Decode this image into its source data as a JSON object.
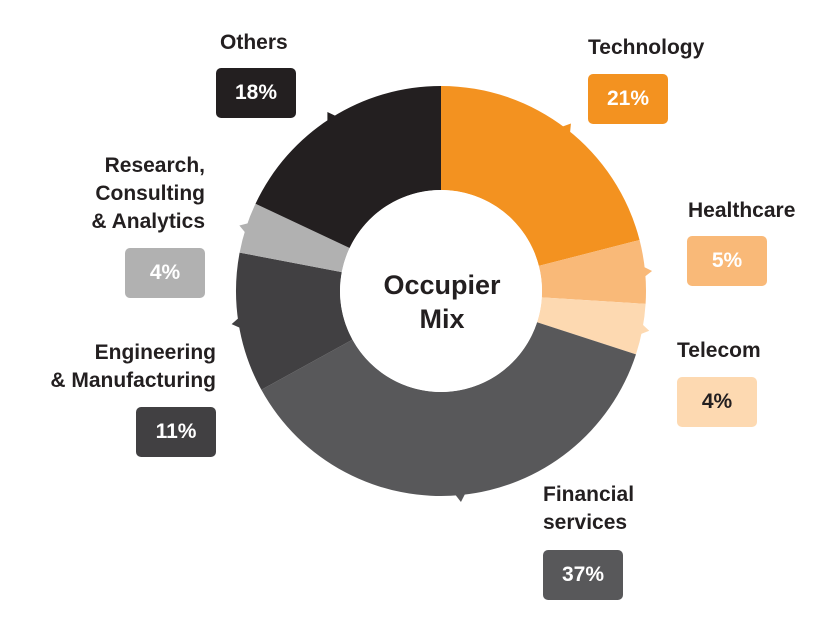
{
  "chart_data": {
    "type": "donut",
    "title": "Occupier Mix",
    "title_lines": [
      "Occupier",
      "Mix"
    ],
    "slices": [
      {
        "name": "Technology",
        "label_lines": [
          "Technology"
        ],
        "value": 21,
        "label": "21%",
        "color": "#f39220",
        "text_color": "#ffffff"
      },
      {
        "name": "Healthcare",
        "label_lines": [
          "Healthcare"
        ],
        "value": 5,
        "label": "5%",
        "color": "#f9b978",
        "text_color": "#ffffff"
      },
      {
        "name": "Telecom",
        "label_lines": [
          "Telecom"
        ],
        "value": 4,
        "label": "4%",
        "color": "#fdd9b1",
        "text_color": "#231f20"
      },
      {
        "name": "Financial services",
        "label_lines": [
          "Financial",
          "services"
        ],
        "value": 37,
        "label": "37%",
        "color": "#58585a",
        "text_color": "#ffffff"
      },
      {
        "name": "Engineering & Manufacturing",
        "label_lines": [
          "Engineering",
          "& Manufacturing"
        ],
        "value": 11,
        "label": "11%",
        "color": "#414042",
        "text_color": "#ffffff"
      },
      {
        "name": "Research, Consulting & Analytics",
        "label_lines": [
          "Research,",
          "Consulting",
          "& Analytics"
        ],
        "value": 4,
        "label": "4%",
        "color": "#b1b1b1",
        "text_color": "#ffffff"
      },
      {
        "name": "Others",
        "label_lines": [
          "Others"
        ],
        "value": 18,
        "label": "18%",
        "color": "#231f20",
        "text_color": "#ffffff"
      }
    ]
  }
}
